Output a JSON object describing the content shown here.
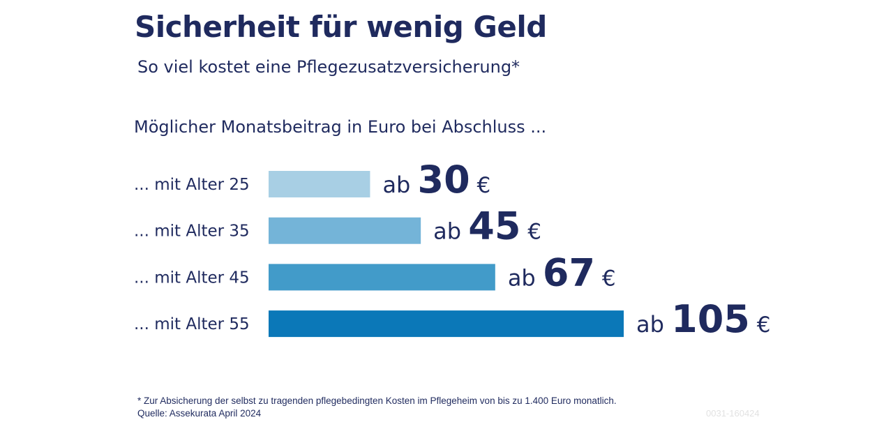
{
  "title": "Sicherheit für wenig Geld",
  "subtitle": "So viel kostet eine Pflegezusatzversicherung*",
  "footnote": "* Zur Absicherung der selbst zu tragenden pflegebedingten Kosten im Pflegeheim von bis zu 1.400 Euro monatlich.",
  "source": "Quelle: Assekurata April 2024",
  "code": "0031-160424",
  "chart_data": {
    "type": "bar",
    "orientation": "horizontal",
    "title": "Möglicher Monatsbeitrag in Euro bei Abschluss ...",
    "categories": [
      "... mit Alter 25",
      "... mit Alter 35",
      "... mit Alter 45",
      "... mit Alter 55"
    ],
    "values": [
      30,
      45,
      67,
      105
    ],
    "value_prefix": "ab",
    "value_unit": "€",
    "bar_colors": [
      "#a8cfe4",
      "#74b4d8",
      "#429bc9",
      "#0b78b8"
    ],
    "grid": false,
    "legend": "none"
  }
}
